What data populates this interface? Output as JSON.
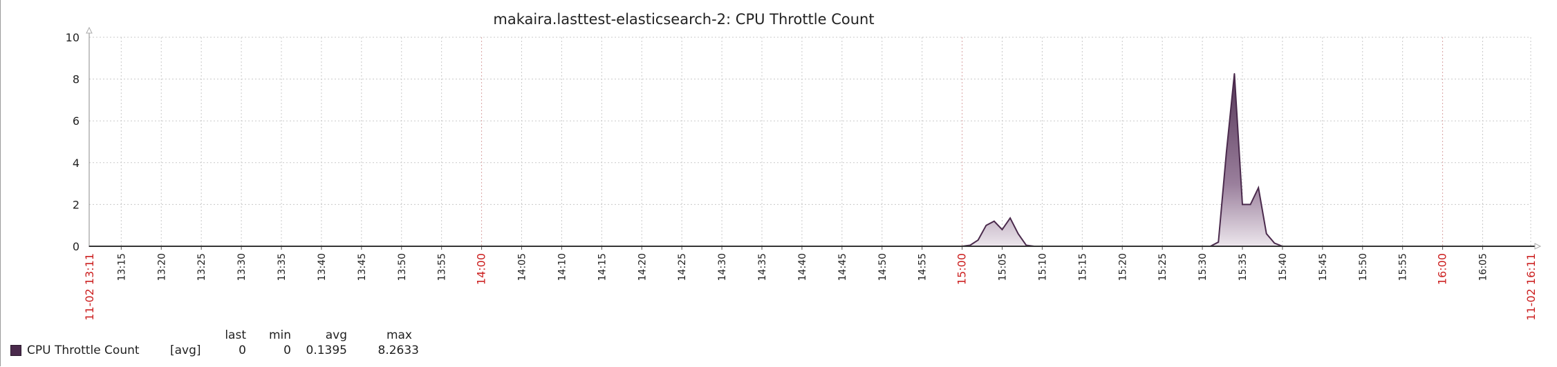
{
  "chart_data": {
    "type": "area",
    "title": "makaira.lasttest-elasticsearch-2: CPU Throttle Count",
    "xlabel": "",
    "ylabel": "",
    "ylim": [
      0,
      10
    ],
    "y_ticks": [
      "0",
      "2",
      "4",
      "6",
      "8",
      "10"
    ],
    "x_range": [
      "13:11",
      "16:11"
    ],
    "x_start_label": "11-02 13:11",
    "x_end_label": "11-02 16:11",
    "x_ticks": [
      "13:15",
      "13:20",
      "13:25",
      "13:30",
      "13:35",
      "13:40",
      "13:45",
      "13:50",
      "13:55",
      "14:00",
      "14:05",
      "14:10",
      "14:15",
      "14:20",
      "14:25",
      "14:30",
      "14:35",
      "14:40",
      "14:45",
      "14:50",
      "14:55",
      "15:00",
      "15:05",
      "15:10",
      "15:15",
      "15:20",
      "15:25",
      "15:30",
      "15:35",
      "15:40",
      "15:45",
      "15:50",
      "15:55",
      "16:00",
      "16:05"
    ],
    "x_ticks_highlight": [
      "14:00",
      "15:00",
      "16:00"
    ],
    "grid": true,
    "series": [
      {
        "name": "CPU Throttle Count",
        "color": "#4a2a4c",
        "points": [
          [
            "13:11",
            0
          ],
          [
            "15:00",
            0
          ],
          [
            "15:01",
            0.05
          ],
          [
            "15:02",
            0.3
          ],
          [
            "15:03",
            1.0
          ],
          [
            "15:04",
            1.2
          ],
          [
            "15:05",
            0.8
          ],
          [
            "15:06",
            1.35
          ],
          [
            "15:07",
            0.6
          ],
          [
            "15:08",
            0.05
          ],
          [
            "15:09",
            0
          ],
          [
            "15:31",
            0
          ],
          [
            "15:32",
            0.2
          ],
          [
            "15:33",
            4.5
          ],
          [
            "15:34",
            8.26
          ],
          [
            "15:35",
            2.0
          ],
          [
            "15:36",
            2.0
          ],
          [
            "15:37",
            2.8
          ],
          [
            "15:38",
            0.6
          ],
          [
            "15:39",
            0.15
          ],
          [
            "15:40",
            0
          ],
          [
            "16:11",
            0
          ]
        ]
      }
    ],
    "legend": {
      "position": "bottom-left",
      "function": "[avg]",
      "columns": [
        "last",
        "min",
        "avg",
        "max"
      ],
      "values": [
        "0",
        "0",
        "0.1395",
        "8.2633"
      ]
    }
  }
}
